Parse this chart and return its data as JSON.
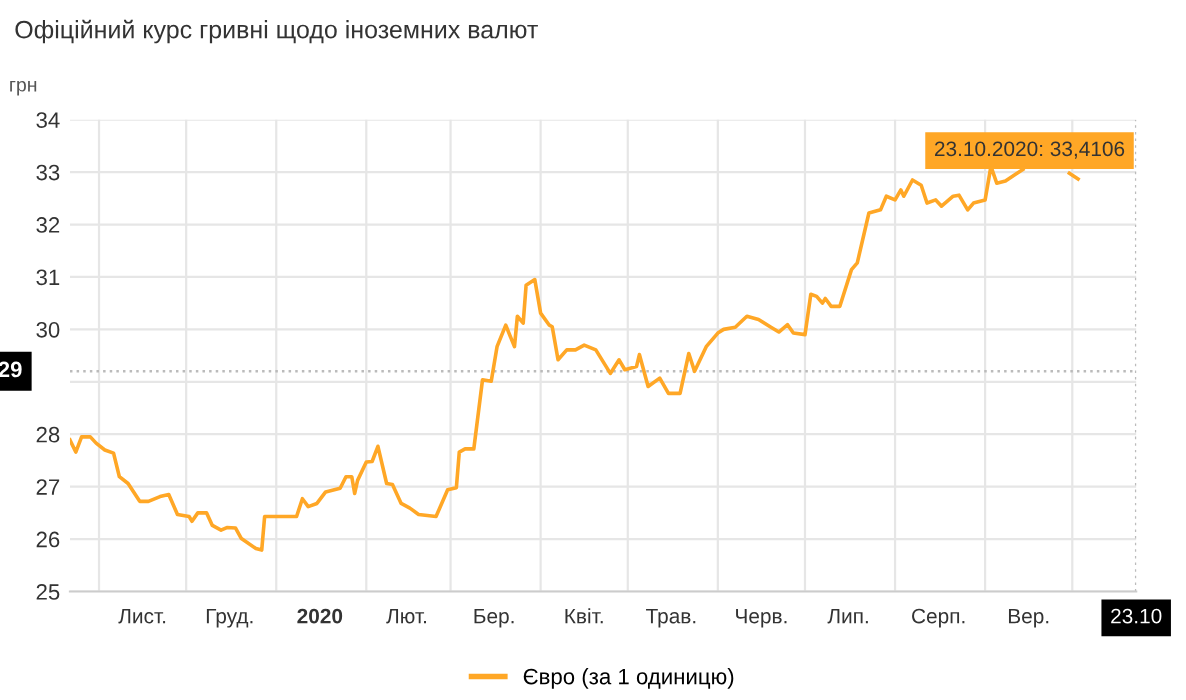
{
  "chart_data": {
    "type": "line",
    "title": "Офіційний курс гривні щодо іноземних валют",
    "ylabel": "грн",
    "x": [
      "2019-10-22",
      "2019-10-24",
      "2019-10-26",
      "2019-10-29",
      "2019-10-31",
      "2019-11-03",
      "2019-11-06",
      "2019-11-08",
      "2019-11-11",
      "2019-11-15",
      "2019-11-18",
      "2019-11-22",
      "2019-11-25",
      "2019-11-28",
      "2019-12-02",
      "2019-12-03",
      "2019-12-05",
      "2019-12-08",
      "2019-12-10",
      "2019-12-13",
      "2019-12-15",
      "2019-12-18",
      "2019-12-20",
      "2019-12-25",
      "2019-12-27",
      "2019-12-28",
      "2020-01-08",
      "2020-01-10",
      "2020-01-12",
      "2020-01-15",
      "2020-01-18",
      "2020-01-23",
      "2020-01-25",
      "2020-01-27",
      "2020-01-28",
      "2020-01-29",
      "2020-02-01",
      "2020-02-03",
      "2020-02-05",
      "2020-02-08",
      "2020-02-10",
      "2020-02-13",
      "2020-02-16",
      "2020-02-19",
      "2020-02-25",
      "2020-02-29",
      "2020-03-03",
      "2020-03-04",
      "2020-03-06",
      "2020-03-09",
      "2020-03-12",
      "2020-03-15",
      "2020-03-17",
      "2020-03-20",
      "2020-03-23",
      "2020-03-24",
      "2020-03-26",
      "2020-03-27",
      "2020-03-30",
      "2020-04-01",
      "2020-04-04",
      "2020-04-05",
      "2020-04-07",
      "2020-04-10",
      "2020-04-13",
      "2020-04-16",
      "2020-04-20",
      "2020-04-25",
      "2020-04-28",
      "2020-04-30",
      "2020-05-04",
      "2020-05-05",
      "2020-05-08",
      "2020-05-12",
      "2020-05-15",
      "2020-05-19",
      "2020-05-22",
      "2020-05-24",
      "2020-05-28",
      "2020-06-01",
      "2020-06-03",
      "2020-06-07",
      "2020-06-11",
      "2020-06-15",
      "2020-06-19",
      "2020-06-22",
      "2020-06-25",
      "2020-06-27",
      "2020-07-01",
      "2020-07-03",
      "2020-07-05",
      "2020-07-07",
      "2020-07-08",
      "2020-07-10",
      "2020-07-13",
      "2020-07-17",
      "2020-07-19",
      "2020-07-23",
      "2020-07-27",
      "2020-07-29",
      "2020-08-01",
      "2020-08-03",
      "2020-08-04",
      "2020-08-07",
      "2020-08-10",
      "2020-08-12",
      "2020-08-15",
      "2020-08-17",
      "2020-08-21",
      "2020-08-23",
      "2020-08-26",
      "2020-08-28",
      "2020-09-01",
      "2020-09-03",
      "2020-09-05",
      "2020-09-08",
      "2020-09-12",
      "2020-09-14",
      "2020-09-16",
      "2020-09-22",
      "2020-09-27",
      "2020-09-30",
      "2020-10-03"
    ],
    "series": [
      {
        "name": "Євро (за 1 одиницю)",
        "color": "#ffa726",
        "values": [
          27.89,
          27.66,
          27.95,
          27.95,
          27.83,
          27.7,
          27.64,
          27.19,
          27.06,
          26.72,
          26.72,
          26.81,
          26.85,
          26.47,
          26.43,
          26.34,
          26.5,
          26.5,
          26.26,
          26.17,
          26.22,
          26.21,
          26.01,
          25.82,
          25.79,
          26.43,
          26.43,
          26.77,
          26.62,
          26.68,
          26.9,
          26.97,
          27.19,
          27.19,
          26.87,
          27.12,
          27.47,
          27.48,
          27.77,
          27.06,
          27.04,
          26.68,
          26.59,
          26.47,
          26.43,
          26.94,
          26.98,
          27.66,
          27.72,
          27.72,
          29.04,
          29.01,
          29.67,
          30.08,
          29.67,
          30.25,
          30.12,
          30.84,
          30.95,
          30.31,
          30.08,
          30.05,
          29.42,
          29.61,
          29.61,
          29.7,
          29.61,
          29.16,
          29.42,
          29.23,
          29.29,
          29.52,
          28.91,
          29.07,
          28.78,
          28.78,
          29.54,
          29.2,
          29.67,
          29.93,
          30.0,
          30.04,
          30.25,
          30.19,
          30.05,
          29.95,
          30.09,
          29.93,
          29.9,
          30.67,
          30.63,
          30.5,
          30.59,
          30.44,
          30.44,
          31.14,
          31.27,
          32.22,
          32.28,
          32.54,
          32.47,
          32.66,
          32.54,
          32.85,
          32.75,
          32.41,
          32.47,
          32.35,
          32.54,
          32.56,
          32.28,
          32.41,
          32.47,
          33.11,
          32.79,
          32.83,
          32.98,
          33.05,
          null,
          null,
          null,
          32.98,
          32.87
        ]
      }
    ],
    "xlim": [
      "2019-10-22",
      "2020-10-23"
    ],
    "xticks": [
      {
        "value": "2019-11-01",
        "label": null
      },
      {
        "value": "2019-11-16",
        "label": "Лист."
      },
      {
        "value": "2019-12-01",
        "label": null
      },
      {
        "value": "2019-12-16",
        "label": "Груд."
      },
      {
        "value": "2020-01-01",
        "label": null
      },
      {
        "value": "2020-01-16",
        "label": "2020"
      },
      {
        "value": "2020-02-01",
        "label": null
      },
      {
        "value": "2020-02-15",
        "label": "Лют."
      },
      {
        "value": "2020-03-01",
        "label": null
      },
      {
        "value": "2020-03-16",
        "label": "Бер."
      },
      {
        "value": "2020-04-01",
        "label": null
      },
      {
        "value": "2020-04-16",
        "label": "Квіт."
      },
      {
        "value": "2020-05-01",
        "label": null
      },
      {
        "value": "2020-05-16",
        "label": "Трав."
      },
      {
        "value": "2020-06-01",
        "label": null
      },
      {
        "value": "2020-06-16",
        "label": "Черв."
      },
      {
        "value": "2020-07-01",
        "label": null
      },
      {
        "value": "2020-07-16",
        "label": "Лип."
      },
      {
        "value": "2020-08-01",
        "label": null
      },
      {
        "value": "2020-08-16",
        "label": "Серп."
      },
      {
        "value": "2020-09-01",
        "label": null
      },
      {
        "value": "2020-09-16",
        "label": "Вер."
      },
      {
        "value": "2020-10-01",
        "label": null
      },
      {
        "value": "2020-10-23",
        "label": "23.10"
      }
    ],
    "ylim": [
      25,
      34
    ],
    "yticks": [
      25,
      26,
      27,
      28,
      {
        "value": 29,
        "label": null
      },
      30,
      31,
      32,
      33,
      34
    ],
    "grid": true,
    "legend": "bottom",
    "marker": "none",
    "line_style": "solid",
    "ref_lines": [
      {
        "axis": "y",
        "value": 29.2,
        "label": "29",
        "color": "#bbbbbb",
        "line_style": "dotted"
      },
      {
        "axis": "x",
        "value": "2020-10-23",
        "color": "#bbbbbb",
        "line_style": "dotted"
      }
    ],
    "annotations": [
      {
        "text": "23.10.2020: 33,4106",
        "x": "2020-10-23",
        "y": 33.4106
      }
    ]
  }
}
